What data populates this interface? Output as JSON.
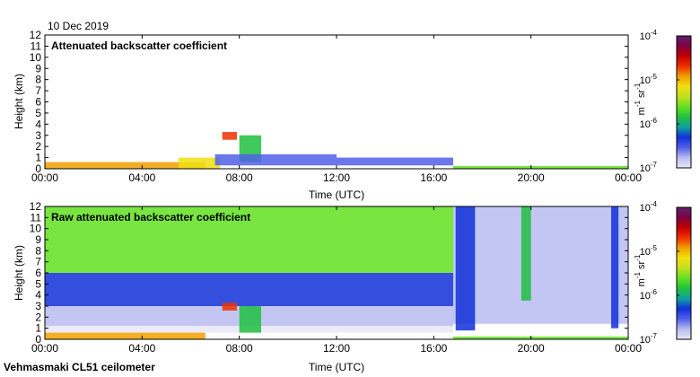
{
  "date_label": "10 Dec 2019",
  "footer_label": "Vehmasmaki CL51 ceilometer",
  "colors": {
    "scale": [
      "#e8e8f8",
      "#b8bcf0",
      "#5060e8",
      "#1030d8",
      "#10a0a0",
      "#20c040",
      "#60e020",
      "#c0e020",
      "#f0e010",
      "#f0a000",
      "#f03000",
      "#c00000",
      "#800040",
      "#602070"
    ],
    "frame": "#000000"
  },
  "colorbar": {
    "unit_base": "m",
    "unit_base_exp": "-1",
    "unit_sr": "sr",
    "unit_sr_exp": "-1",
    "tick_base": "10",
    "tick_exponents": [
      "-4",
      "-5",
      "-6",
      "-7"
    ]
  },
  "chart_data": [
    {
      "type": "heatmap",
      "title": "Attenuated backscatter coefficient",
      "xlabel": "Time (UTC)",
      "ylabel": "Height (km)",
      "xlim": [
        0,
        24
      ],
      "ylim": [
        0,
        12
      ],
      "xticks": [
        0,
        4,
        8,
        12,
        16,
        20,
        24
      ],
      "xtick_labels": [
        "00:00",
        "04:00",
        "08:00",
        "12:00",
        "16:00",
        "20:00",
        "00:00"
      ],
      "yticks": [
        0,
        1,
        2,
        3,
        4,
        5,
        6,
        7,
        8,
        9,
        10,
        11,
        12
      ],
      "ytick_labels": [
        "0",
        "1",
        "2",
        "3",
        "4",
        "5",
        "6",
        "7",
        "8",
        "9",
        "10",
        "11",
        "12"
      ],
      "colorbar_range": [
        "1e-7",
        "1e-4"
      ],
      "regions": [
        {
          "name": "boundary-layer-morning",
          "t0": 0.0,
          "t1": 6.6,
          "h0": 0.0,
          "h1": 0.6,
          "level": 9
        },
        {
          "name": "boundary-layer-ramp",
          "t0": 5.5,
          "t1": 7.2,
          "h0": 0.0,
          "h1": 1.0,
          "level": 8
        },
        {
          "name": "low-cloud-0730",
          "t0": 7.3,
          "t1": 7.9,
          "h0": 2.6,
          "h1": 3.3,
          "level": 10
        },
        {
          "name": "cloud-0830",
          "t0": 8.0,
          "t1": 8.9,
          "h0": 0.6,
          "h1": 3.0,
          "level": 5
        },
        {
          "name": "cloud-layer-morning",
          "t0": 7.0,
          "t1": 12.0,
          "h0": 0.3,
          "h1": 1.3,
          "level": 2
        },
        {
          "name": "cloud-layer-midday",
          "t0": 12.0,
          "t1": 16.8,
          "h0": 0.3,
          "h1": 1.0,
          "level": 2
        },
        {
          "name": "surface-evening",
          "t0": 16.8,
          "t1": 24.0,
          "h0": 0.0,
          "h1": 0.25,
          "level": 6
        }
      ]
    },
    {
      "type": "heatmap",
      "title": "Raw attenuated backscatter coefficient",
      "xlabel": "Time (UTC)",
      "ylabel": "Height (km)",
      "xlim": [
        0,
        24
      ],
      "ylim": [
        0,
        12
      ],
      "xticks": [
        0,
        4,
        8,
        12,
        16,
        20,
        24
      ],
      "xtick_labels": [
        "00:00",
        "04:00",
        "08:00",
        "12:00",
        "16:00",
        "20:00",
        "00:00"
      ],
      "yticks": [
        0,
        1,
        2,
        3,
        4,
        5,
        6,
        7,
        8,
        9,
        10,
        11,
        12
      ],
      "ytick_labels": [
        "0",
        "1",
        "2",
        "3",
        "4",
        "5",
        "6",
        "7",
        "8",
        "9",
        "10",
        "11",
        "12"
      ],
      "colorbar_range": [
        "1e-7",
        "1e-4"
      ],
      "regions": [
        {
          "name": "noise-upper-day",
          "t0": 0.0,
          "t1": 16.8,
          "h0": 6.0,
          "h1": 12.0,
          "level": 6
        },
        {
          "name": "noise-mid-day",
          "t0": 0.0,
          "t1": 16.8,
          "h0": 3.0,
          "h1": 6.0,
          "level": 3
        },
        {
          "name": "noise-low-day",
          "t0": 0.0,
          "t1": 16.8,
          "h0": 1.2,
          "h1": 3.0,
          "level": 1
        },
        {
          "name": "clear-band-day",
          "t0": 0.0,
          "t1": 16.8,
          "h0": 0.6,
          "h1": 1.2,
          "level": 0
        },
        {
          "name": "boundary-layer-morning",
          "t0": 0.0,
          "t1": 6.6,
          "h0": 0.0,
          "h1": 0.6,
          "level": 9
        },
        {
          "name": "low-cloud-0730",
          "t0": 7.3,
          "t1": 7.9,
          "h0": 2.6,
          "h1": 3.3,
          "level": 10
        },
        {
          "name": "cloud-0830",
          "t0": 8.0,
          "t1": 8.9,
          "h0": 0.6,
          "h1": 3.0,
          "level": 5
        },
        {
          "name": "noise-evening",
          "t0": 16.8,
          "t1": 24.0,
          "h0": 1.4,
          "h1": 12.0,
          "level": 1
        },
        {
          "name": "band-1655",
          "t0": 16.9,
          "t1": 17.7,
          "h0": 0.8,
          "h1": 12.0,
          "level": 3
        },
        {
          "name": "band-1945",
          "t0": 19.6,
          "t1": 20.0,
          "h0": 3.5,
          "h1": 12.0,
          "level": 5
        },
        {
          "name": "band-2330",
          "t0": 23.3,
          "t1": 23.6,
          "h0": 1.0,
          "h1": 12.0,
          "level": 3
        },
        {
          "name": "surface-evening",
          "t0": 16.8,
          "t1": 24.0,
          "h0": 0.0,
          "h1": 0.25,
          "level": 6
        }
      ]
    }
  ]
}
